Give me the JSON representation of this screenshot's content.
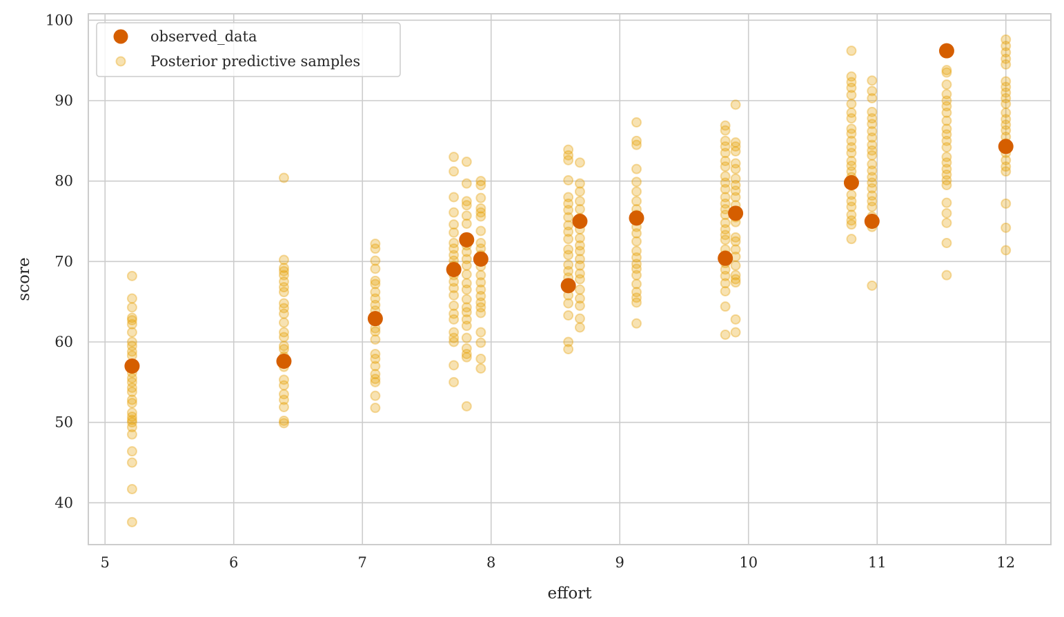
{
  "chart_data": {
    "type": "scatter",
    "title": "",
    "xlabel": "effort",
    "ylabel": "score",
    "xlim": [
      4.87,
      12.35
    ],
    "ylim": [
      34.8,
      100.8
    ],
    "xticks": [
      5,
      6,
      7,
      8,
      9,
      10,
      11,
      12
    ],
    "yticks": [
      40,
      50,
      60,
      70,
      80,
      90,
      100
    ],
    "grid": true,
    "legend_position": "top-left",
    "colors": {
      "observed": "#d55e00",
      "samples": "#e69f00",
      "grid": "#cccccc",
      "text": "#262626"
    },
    "series": [
      {
        "name": "observed_data",
        "x": [
          5.21,
          6.39,
          7.1,
          7.71,
          7.81,
          7.92,
          8.6,
          8.69,
          9.13,
          9.82,
          9.9,
          10.8,
          10.96,
          11.54,
          12.0
        ],
        "y": [
          57.0,
          57.6,
          62.9,
          69.0,
          72.7,
          70.3,
          67.0,
          75.0,
          75.4,
          70.4,
          76.0,
          79.8,
          75.0,
          96.2,
          84.3
        ]
      },
      {
        "name": "Posterior predictive samples",
        "columns": [
          {
            "x": 5.21,
            "y": [
              68.2,
              65.4,
              64.3,
              63.0,
              62.7,
              62.2,
              61.2,
              60.0,
              59.5,
              58.8,
              58.3,
              56.2,
              55.5,
              55.0,
              54.3,
              53.8,
              52.8,
              52.4,
              51.2,
              50.7,
              50.3,
              50.0,
              49.4,
              48.5,
              46.4,
              45.0,
              41.7,
              37.6
            ]
          },
          {
            "x": 6.39,
            "y": [
              80.4,
              70.2,
              69.2,
              68.8,
              68.3,
              67.5,
              66.8,
              66.2,
              64.8,
              64.2,
              63.5,
              62.4,
              61.2,
              60.6,
              59.5,
              59.1,
              58.2,
              56.9,
              55.3,
              54.6,
              53.5,
              52.8,
              51.9,
              50.2,
              49.9
            ]
          },
          {
            "x": 7.1,
            "y": [
              72.2,
              71.6,
              70.1,
              69.1,
              67.6,
              67.2,
              66.2,
              65.4,
              64.6,
              63.9,
              63.2,
              61.7,
              61.3,
              60.3,
              58.5,
              57.9,
              57.0,
              56.0,
              55.4,
              55.0,
              53.3,
              51.8
            ]
          },
          {
            "x": 7.71,
            "y": [
              83.0,
              81.2,
              78.0,
              76.1,
              74.6,
              73.6,
              72.3,
              71.6,
              70.8,
              70.1,
              69.5,
              68.3,
              67.5,
              66.7,
              65.8,
              64.5,
              63.5,
              62.8,
              61.2,
              60.5,
              60.0,
              57.1,
              55.0
            ]
          },
          {
            "x": 7.81,
            "y": [
              82.4,
              79.7,
              77.5,
              77.0,
              75.7,
              74.7,
              72.0,
              71.2,
              70.3,
              69.5,
              68.4,
              67.3,
              66.5,
              65.3,
              64.3,
              63.7,
              62.8,
              62.0,
              60.5,
              59.2,
              58.5,
              58.1,
              52.0
            ]
          },
          {
            "x": 7.92,
            "y": [
              80.0,
              79.5,
              77.9,
              76.6,
              76.1,
              75.6,
              73.8,
              72.3,
              71.6,
              70.8,
              69.4,
              68.3,
              67.4,
              66.5,
              65.7,
              64.9,
              64.3,
              63.6,
              61.2,
              59.9,
              57.9,
              56.7
            ]
          },
          {
            "x": 8.6,
            "y": [
              83.9,
              83.2,
              82.6,
              80.1,
              78.0,
              77.2,
              76.4,
              75.5,
              74.5,
              73.7,
              72.8,
              71.5,
              70.8,
              69.6,
              68.8,
              68.0,
              67.2,
              65.8,
              64.8,
              63.3,
              60.0,
              59.1
            ]
          },
          {
            "x": 8.69,
            "y": [
              82.3,
              79.7,
              78.7,
              77.5,
              76.5,
              75.4,
              74.0,
              72.9,
              72.0,
              71.3,
              70.3,
              69.5,
              68.5,
              67.8,
              66.5,
              65.4,
              64.5,
              62.9,
              61.8
            ]
          },
          {
            "x": 9.13,
            "y": [
              87.3,
              85.0,
              84.5,
              81.5,
              79.9,
              78.7,
              77.5,
              76.5,
              75.8,
              74.3,
              73.5,
              72.5,
              71.3,
              70.5,
              69.7,
              69.1,
              68.3,
              67.2,
              66.2,
              65.5,
              64.9,
              62.3
            ]
          },
          {
            "x": 9.82,
            "y": [
              86.9,
              86.3,
              85.0,
              84.3,
              83.5,
              82.5,
              81.8,
              80.6,
              79.8,
              79.0,
              78.0,
              77.2,
              76.5,
              75.8,
              74.8,
              74.0,
              73.3,
              72.7,
              71.5,
              70.8,
              69.8,
              69.0,
              68.2,
              67.3,
              66.3,
              64.4,
              60.9
            ]
          },
          {
            "x": 9.9,
            "y": [
              89.5,
              84.8,
              84.3,
              83.7,
              82.2,
              81.5,
              80.3,
              79.5,
              78.8,
              78.0,
              77.0,
              75.5,
              74.9,
              73.0,
              72.5,
              71.5,
              70.6,
              69.5,
              68.3,
              67.8,
              67.4,
              62.8,
              61.2
            ]
          },
          {
            "x": 10.8,
            "y": [
              96.2,
              93.0,
              92.3,
              91.6,
              90.7,
              89.6,
              88.5,
              87.8,
              86.5,
              85.9,
              85.0,
              84.2,
              83.5,
              82.5,
              81.9,
              81.2,
              80.5,
              79.8,
              78.3,
              77.5,
              76.8,
              75.8,
              75.1,
              74.6,
              72.8
            ]
          },
          {
            "x": 10.96,
            "y": [
              92.5,
              91.2,
              90.3,
              88.6,
              87.8,
              87.1,
              86.2,
              85.4,
              84.5,
              83.8,
              83.2,
              82.1,
              81.3,
              80.5,
              79.8,
              79.1,
              78.2,
              77.5,
              76.8,
              75.6,
              74.3,
              67.0
            ]
          },
          {
            "x": 11.54,
            "y": [
              93.8,
              93.5,
              92.0,
              90.8,
              90.0,
              89.3,
              88.5,
              87.5,
              86.5,
              85.8,
              85.0,
              84.2,
              83.0,
              82.3,
              81.5,
              80.8,
              80.1,
              79.5,
              77.3,
              76.0,
              74.8,
              72.3,
              68.3
            ]
          },
          {
            "x": 12.0,
            "y": [
              97.6,
              96.8,
              96.0,
              95.2,
              94.5,
              92.4,
              91.7,
              91.0,
              90.3,
              89.6,
              88.5,
              87.7,
              87.0,
              86.3,
              85.5,
              84.7,
              83.5,
              82.6,
              81.8,
              81.2,
              77.2,
              74.2,
              71.4
            ]
          }
        ]
      }
    ],
    "legend": [
      {
        "label": "observed_data",
        "marker": "large-dot"
      },
      {
        "label": "Posterior predictive samples",
        "marker": "faint-dot"
      }
    ]
  }
}
